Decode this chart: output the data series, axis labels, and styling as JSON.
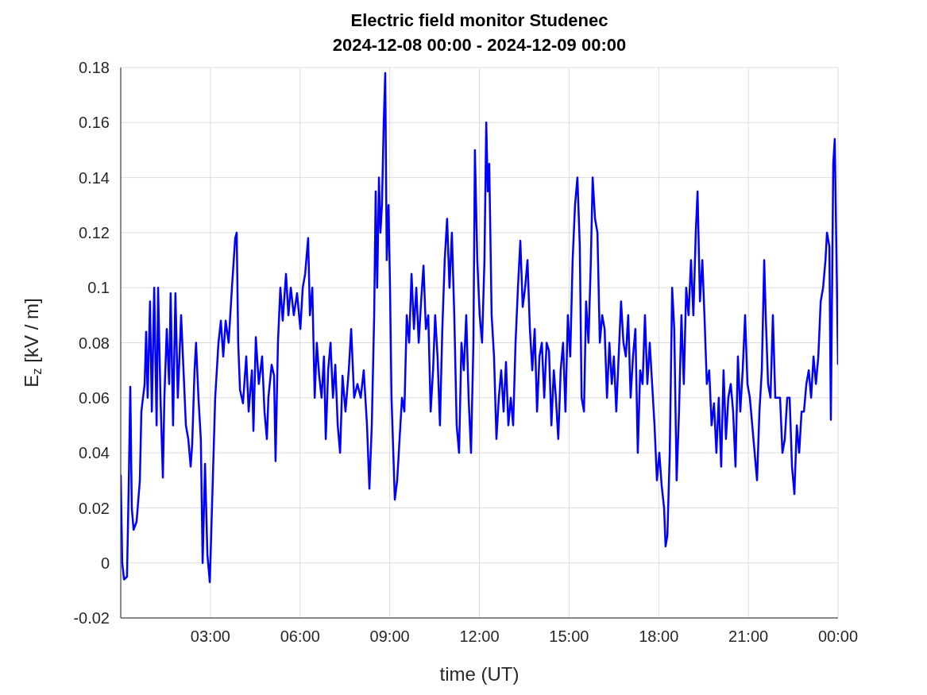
{
  "chart_data": {
    "type": "line",
    "title": "Electric field monitor Studenec",
    "subtitle": "2024-12-08 00:00 - 2024-12-09 00:00",
    "xlabel": "time (UT)",
    "ylabel": "E$_{z}$ [kV / m]",
    "xlim": [
      0,
      24
    ],
    "xticks": [
      {
        "value": 0,
        "label": null
      },
      {
        "value": 3,
        "label": "03:00"
      },
      {
        "value": 6,
        "label": "06:00"
      },
      {
        "value": 9,
        "label": "09:00"
      },
      {
        "value": 12,
        "label": "12:00"
      },
      {
        "value": 15,
        "label": "15:00"
      },
      {
        "value": 18,
        "label": "18:00"
      },
      {
        "value": 21,
        "label": "21:00"
      },
      {
        "value": 24,
        "label": "00:00"
      }
    ],
    "ylim": [
      -0.02,
      0.18
    ],
    "yticks": [
      -0.02,
      0,
      0.02,
      0.04,
      0.06,
      0.08,
      0.1,
      0.12,
      0.14,
      0.16,
      0.18
    ],
    "grid": true,
    "x": [
      0,
      0.05,
      0.11,
      0.21,
      0.27,
      0.32,
      0.37,
      0.43,
      0.53,
      0.64,
      0.69,
      0.8,
      0.85,
      0.9,
      0.98,
      1.04,
      1.12,
      1.2,
      1.25,
      1.33,
      1.41,
      1.46,
      1.54,
      1.62,
      1.67,
      1.75,
      1.83,
      1.91,
      2.02,
      2.1,
      2.18,
      2.26,
      2.34,
      2.39,
      2.47,
      2.52,
      2.6,
      2.68,
      2.74,
      2.82,
      2.9,
      2.98,
      3.08,
      3.16,
      3.27,
      3.35,
      3.43,
      3.51,
      3.61,
      3.72,
      3.83,
      3.88,
      3.93,
      3.99,
      4.09,
      4.2,
      4.28,
      4.39,
      4.44,
      4.52,
      4.62,
      4.73,
      4.81,
      4.89,
      4.94,
      5.05,
      5.13,
      5.18,
      5.26,
      5.34,
      5.42,
      5.53,
      5.61,
      5.69,
      5.79,
      5.9,
      6.01,
      6.09,
      6.17,
      6.27,
      6.33,
      6.41,
      6.49,
      6.56,
      6.64,
      6.72,
      6.8,
      6.86,
      6.94,
      7.02,
      7.1,
      7.18,
      7.26,
      7.34,
      7.42,
      7.52,
      7.63,
      7.71,
      7.81,
      7.92,
      8.03,
      8.13,
      8.24,
      8.32,
      8.4,
      8.48,
      8.53,
      8.58,
      8.64,
      8.69,
      8.74,
      8.8,
      8.85,
      8.9,
      8.96,
      9.01,
      9.06,
      9.12,
      9.17,
      9.25,
      9.33,
      9.41,
      9.49,
      9.57,
      9.65,
      9.73,
      9.81,
      9.89,
      9.97,
      10.05,
      10.13,
      10.21,
      10.29,
      10.37,
      10.45,
      10.52,
      10.6,
      10.68,
      10.76,
      10.84,
      10.92,
      11,
      11.08,
      11.16,
      11.24,
      11.32,
      11.4,
      11.48,
      11.56,
      11.64,
      11.72,
      11.8,
      11.85,
      11.93,
      12.01,
      12.09,
      12.17,
      12.23,
      12.28,
      12.33,
      12.41,
      12.49,
      12.57,
      12.65,
      12.73,
      12.81,
      12.89,
      12.97,
      13.05,
      13.13,
      13.21,
      13.29,
      13.37,
      13.45,
      13.53,
      13.61,
      13.69,
      13.77,
      13.85,
      13.93,
      14.01,
      14.09,
      14.17,
      14.25,
      14.33,
      14.41,
      14.49,
      14.56,
      14.64,
      14.72,
      14.8,
      14.88,
      14.96,
      15.04,
      15.12,
      15.2,
      15.28,
      15.36,
      15.42,
      15.5,
      15.57,
      15.65,
      15.73,
      15.79,
      15.87,
      15.95,
      16.03,
      16.11,
      16.19,
      16.27,
      16.35,
      16.43,
      16.5,
      16.58,
      16.66,
      16.74,
      16.82,
      16.9,
      16.98,
      17.06,
      17.14,
      17.22,
      17.3,
      17.38,
      17.46,
      17.54,
      17.62,
      17.7,
      17.78,
      17.86,
      17.94,
      18.02,
      18.1,
      18.18,
      18.23,
      18.29,
      18.37,
      18.45,
      18.52,
      18.6,
      18.68,
      18.76,
      18.84,
      18.92,
      19,
      19.08,
      19.16,
      19.24,
      19.3,
      19.38,
      19.46,
      19.53,
      19.61,
      19.69,
      19.77,
      19.85,
      19.93,
      20.01,
      20.09,
      20.17,
      20.25,
      20.33,
      20.41,
      20.49,
      20.57,
      20.65,
      20.73,
      20.81,
      20.89,
      20.97,
      21.05,
      21.13,
      21.21,
      21.29,
      21.37,
      21.45,
      21.53,
      21.58,
      21.66,
      21.74,
      21.82,
      21.9,
      21.98,
      22.06,
      22.14,
      22.22,
      22.3,
      22.38,
      22.46,
      22.54,
      22.62,
      22.7,
      22.78,
      22.86,
      22.94,
      23.02,
      23.1,
      23.18,
      23.26,
      23.34,
      23.42,
      23.5,
      23.58,
      23.63,
      23.71,
      23.76,
      23.84,
      23.89,
      23.95,
      24
    ],
    "series": [
      {
        "color": "#0000ff",
        "values": [
          0.032,
          0,
          -0.006,
          -0.005,
          0.03,
          0.064,
          0.02,
          0.012,
          0.015,
          0.03,
          0.055,
          0.065,
          0.084,
          0.06,
          0.095,
          0.055,
          0.1,
          0.05,
          0.1,
          0.06,
          0.031,
          0.06,
          0.085,
          0.065,
          0.098,
          0.05,
          0.098,
          0.06,
          0.09,
          0.07,
          0.05,
          0.045,
          0.035,
          0.043,
          0.07,
          0.08,
          0.06,
          0.045,
          0,
          0.036,
          0.003,
          -0.007,
          0.03,
          0.06,
          0.08,
          0.088,
          0.075,
          0.088,
          0.08,
          0.1,
          0.118,
          0.12,
          0.08,
          0.063,
          0.058,
          0.075,
          0.055,
          0.07,
          0.048,
          0.082,
          0.065,
          0.075,
          0.055,
          0.045,
          0.06,
          0.072,
          0.068,
          0.037,
          0.08,
          0.1,
          0.088,
          0.105,
          0.09,
          0.1,
          0.09,
          0.098,
          0.085,
          0.1,
          0.105,
          0.118,
          0.09,
          0.1,
          0.06,
          0.08,
          0.068,
          0.06,
          0.075,
          0.045,
          0.07,
          0.08,
          0.06,
          0.072,
          0.05,
          0.04,
          0.068,
          0.055,
          0.07,
          0.085,
          0.06,
          0.065,
          0.06,
          0.07,
          0.05,
          0.027,
          0.05,
          0.09,
          0.135,
          0.1,
          0.14,
          0.12,
          0.13,
          0.16,
          0.178,
          0.11,
          0.13,
          0.1,
          0.06,
          0.04,
          0.023,
          0.03,
          0.045,
          0.06,
          0.055,
          0.09,
          0.08,
          0.105,
          0.085,
          0.1,
          0.08,
          0.095,
          0.108,
          0.085,
          0.09,
          0.055,
          0.07,
          0.09,
          0.075,
          0.05,
          0.085,
          0.11,
          0.125,
          0.1,
          0.12,
          0.09,
          0.05,
          0.04,
          0.08,
          0.07,
          0.09,
          0.06,
          0.04,
          0.08,
          0.15,
          0.11,
          0.09,
          0.08,
          0.11,
          0.16,
          0.135,
          0.145,
          0.09,
          0.075,
          0.045,
          0.06,
          0.07,
          0.055,
          0.073,
          0.05,
          0.06,
          0.05,
          0.08,
          0.1,
          0.117,
          0.093,
          0.1,
          0.11,
          0.085,
          0.07,
          0.085,
          0.055,
          0.075,
          0.08,
          0.06,
          0.08,
          0.077,
          0.05,
          0.07,
          0.06,
          0.045,
          0.07,
          0.08,
          0.055,
          0.09,
          0.075,
          0.11,
          0.13,
          0.14,
          0.115,
          0.06,
          0.055,
          0.095,
          0.08,
          0.11,
          0.14,
          0.125,
          0.12,
          0.08,
          0.09,
          0.085,
          0.06,
          0.08,
          0.065,
          0.075,
          0.055,
          0.075,
          0.095,
          0.08,
          0.075,
          0.09,
          0.06,
          0.075,
          0.085,
          0.04,
          0.07,
          0.065,
          0.09,
          0.065,
          0.08,
          0.065,
          0.05,
          0.03,
          0.04,
          0.028,
          0.02,
          0.006,
          0.01,
          0.04,
          0.1,
          0.085,
          0.03,
          0.055,
          0.09,
          0.065,
          0.1,
          0.09,
          0.11,
          0.09,
          0.12,
          0.135,
          0.095,
          0.11,
          0.09,
          0.065,
          0.07,
          0.05,
          0.058,
          0.04,
          0.06,
          0.035,
          0.07,
          0.045,
          0.06,
          0.065,
          0.055,
          0.035,
          0.075,
          0.055,
          0.07,
          0.09,
          0.065,
          0.06,
          0.05,
          0.04,
          0.03,
          0.055,
          0.07,
          0.11,
          0.09,
          0.065,
          0.06,
          0.09,
          0.06,
          0.06,
          0.06,
          0.04,
          0.045,
          0.06,
          0.06,
          0.035,
          0.025,
          0.05,
          0.04,
          0.055,
          0.055,
          0.065,
          0.07,
          0.06,
          0.075,
          0.065,
          0.075,
          0.095,
          0.1,
          0.11,
          0.12,
          0.115,
          0.052,
          0.145,
          0.154,
          0.11,
          0.072
        ]
      }
    ]
  }
}
